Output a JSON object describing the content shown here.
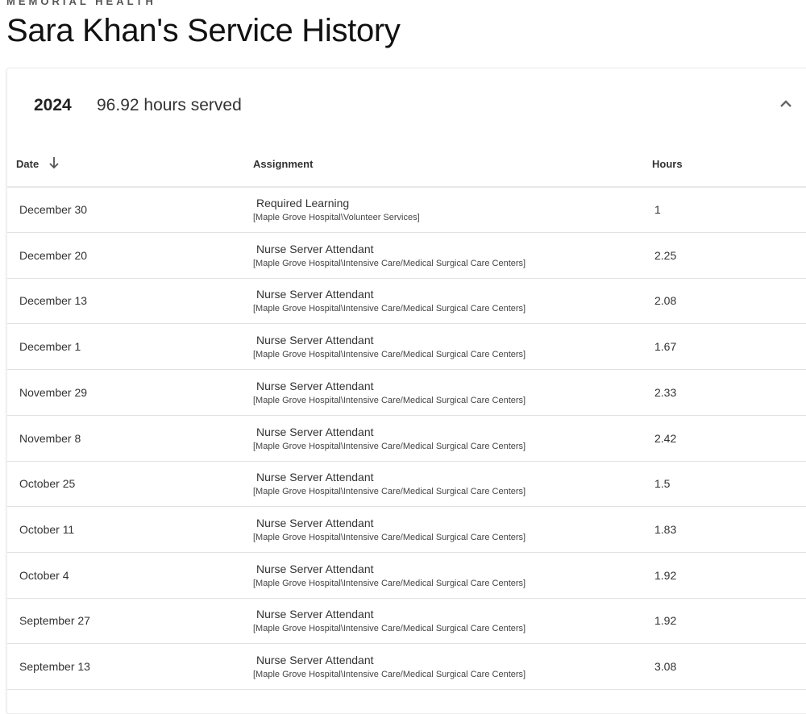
{
  "brand": "MEMORIAL HEALTH",
  "page_title": "Sara Khan's Service History",
  "section": {
    "year": "2024",
    "total": "96.92 hours served",
    "expanded": true
  },
  "columns": {
    "date": "Date",
    "assignment": "Assignment",
    "hours": "Hours",
    "sort": "date-descending"
  },
  "rows": [
    {
      "date": "December 30",
      "assignment": "Required Learning",
      "location": "[Maple Grove Hospital\\Volunteer Services]",
      "hours": "1"
    },
    {
      "date": "December 20",
      "assignment": "Nurse Server Attendant",
      "location": "[Maple Grove Hospital\\Intensive Care/Medical Surgical Care Centers]",
      "hours": "2.25"
    },
    {
      "date": "December 13",
      "assignment": "Nurse Server Attendant",
      "location": "[Maple Grove Hospital\\Intensive Care/Medical Surgical Care Centers]",
      "hours": "2.08"
    },
    {
      "date": "December 1",
      "assignment": "Nurse Server Attendant",
      "location": "[Maple Grove Hospital\\Intensive Care/Medical Surgical Care Centers]",
      "hours": "1.67"
    },
    {
      "date": "November 29",
      "assignment": "Nurse Server Attendant",
      "location": "[Maple Grove Hospital\\Intensive Care/Medical Surgical Care Centers]",
      "hours": "2.33"
    },
    {
      "date": "November 8",
      "assignment": "Nurse Server Attendant",
      "location": "[Maple Grove Hospital\\Intensive Care/Medical Surgical Care Centers]",
      "hours": "2.42"
    },
    {
      "date": "October 25",
      "assignment": "Nurse Server Attendant",
      "location": "[Maple Grove Hospital\\Intensive Care/Medical Surgical Care Centers]",
      "hours": "1.5"
    },
    {
      "date": "October 11",
      "assignment": "Nurse Server Attendant",
      "location": "[Maple Grove Hospital\\Intensive Care/Medical Surgical Care Centers]",
      "hours": "1.83"
    },
    {
      "date": "October 4",
      "assignment": "Nurse Server Attendant",
      "location": "[Maple Grove Hospital\\Intensive Care/Medical Surgical Care Centers]",
      "hours": "1.92"
    },
    {
      "date": "September 27",
      "assignment": "Nurse Server Attendant",
      "location": "[Maple Grove Hospital\\Intensive Care/Medical Surgical Care Centers]",
      "hours": "1.92"
    },
    {
      "date": "September 13",
      "assignment": "Nurse Server Attendant",
      "location": "[Maple Grove Hospital\\Intensive Care/Medical Surgical Care Centers]",
      "hours": "3.08"
    }
  ]
}
